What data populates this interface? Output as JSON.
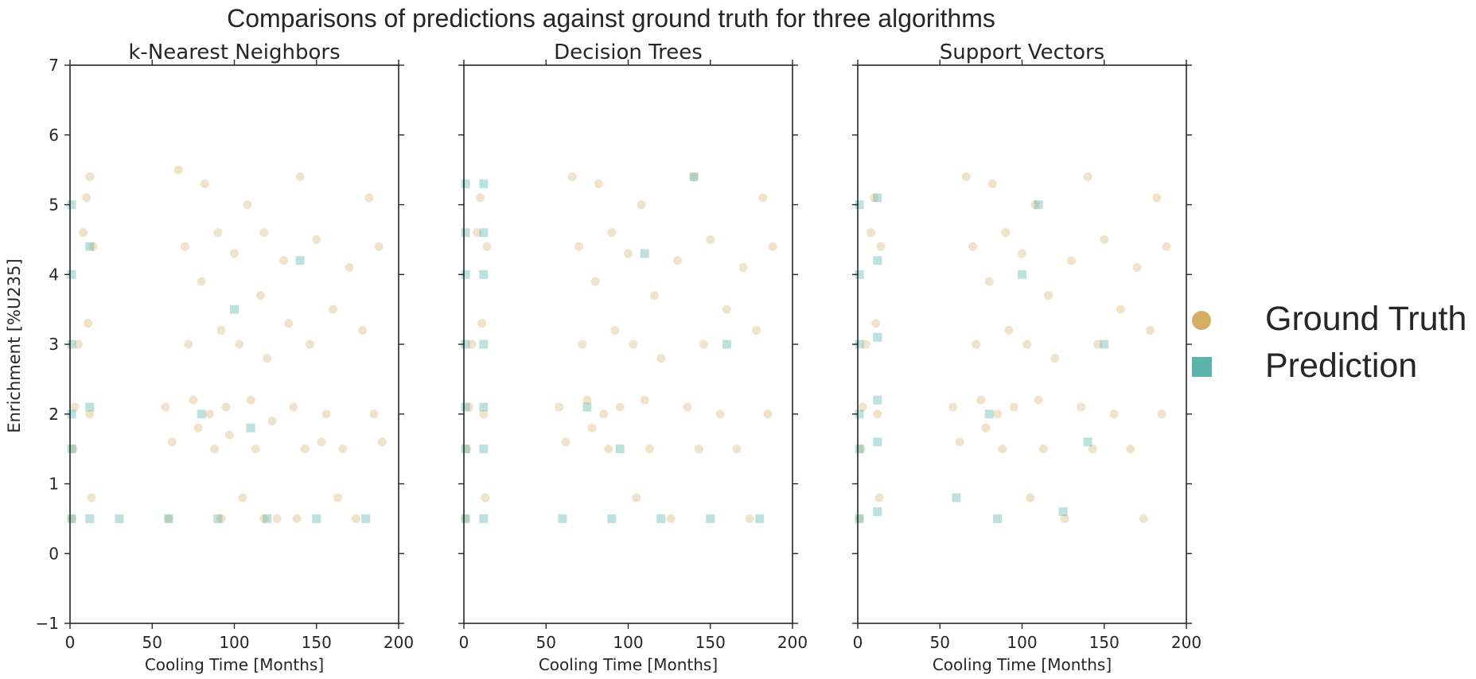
{
  "figure": {
    "title": "Comparisons of predictions against ground truth for three algorithms",
    "ylabel": "Enrichment [%U235]",
    "xlabel": "Cooling Time [Months]"
  },
  "legend": {
    "entries": [
      {
        "label": "Ground Truth",
        "marker": "circle",
        "color": "#d4ae63"
      },
      {
        "label": "Prediction",
        "marker": "square",
        "color": "#5ab4ac"
      }
    ],
    "placement": "right"
  },
  "colors": {
    "ground_truth": "#d4ae63",
    "prediction": "#5ab4ac",
    "axis": "#262626"
  },
  "chart_data": [
    {
      "type": "scatter",
      "title": "k-Nearest Neighbors",
      "xlabel": "Cooling Time [Months]",
      "ylabel": "Enrichment [%U235]",
      "xlim": [
        0,
        200
      ],
      "ylim": [
        -1,
        7
      ],
      "xticks": [
        0,
        50,
        100,
        150,
        200
      ],
      "yticks": [
        -1,
        0,
        1,
        2,
        3,
        4,
        5,
        6,
        7
      ],
      "grid": false,
      "series": [
        {
          "name": "Ground Truth",
          "points": [
            [
              1,
              0.5
            ],
            [
              2,
              1.5
            ],
            [
              3,
              2.1
            ],
            [
              5,
              3.0
            ],
            [
              8,
              4.6
            ],
            [
              10,
              5.1
            ],
            [
              11,
              3.3
            ],
            [
              12,
              2.0
            ],
            [
              13,
              0.8
            ],
            [
              14,
              4.4
            ],
            [
              12,
              5.4
            ],
            [
              58,
              2.1
            ],
            [
              62,
              1.6
            ],
            [
              66,
              5.5
            ],
            [
              70,
              4.4
            ],
            [
              72,
              3.0
            ],
            [
              75,
              2.2
            ],
            [
              78,
              1.8
            ],
            [
              80,
              3.9
            ],
            [
              82,
              5.3
            ],
            [
              85,
              2.0
            ],
            [
              88,
              1.5
            ],
            [
              90,
              4.6
            ],
            [
              92,
              3.2
            ],
            [
              95,
              2.1
            ],
            [
              97,
              1.7
            ],
            [
              100,
              4.3
            ],
            [
              103,
              3.0
            ],
            [
              105,
              0.8
            ],
            [
              108,
              5.0
            ],
            [
              110,
              2.2
            ],
            [
              113,
              1.5
            ],
            [
              116,
              3.7
            ],
            [
              118,
              4.6
            ],
            [
              120,
              2.8
            ],
            [
              123,
              1.9
            ],
            [
              126,
              0.5
            ],
            [
              130,
              4.2
            ],
            [
              133,
              3.3
            ],
            [
              136,
              2.1
            ],
            [
              140,
              5.4
            ],
            [
              143,
              1.5
            ],
            [
              146,
              3.0
            ],
            [
              150,
              4.5
            ],
            [
              153,
              1.6
            ],
            [
              156,
              2.0
            ],
            [
              160,
              3.5
            ],
            [
              163,
              0.8
            ],
            [
              166,
              1.5
            ],
            [
              170,
              4.1
            ],
            [
              174,
              0.5
            ],
            [
              178,
              3.2
            ],
            [
              182,
              5.1
            ],
            [
              185,
              2.0
            ],
            [
              188,
              4.4
            ],
            [
              190,
              1.6
            ],
            [
              60,
              0.5
            ],
            [
              92,
              0.5
            ],
            [
              118,
              0.5
            ],
            [
              138,
              0.5
            ]
          ]
        },
        {
          "name": "Prediction",
          "points": [
            [
              1,
              0.5
            ],
            [
              1,
              1.5
            ],
            [
              1,
              2.0
            ],
            [
              1,
              3.0
            ],
            [
              1,
              4.0
            ],
            [
              1,
              5.0
            ],
            [
              12,
              0.5
            ],
            [
              12,
              2.1
            ],
            [
              12,
              4.4
            ],
            [
              30,
              0.5
            ],
            [
              60,
              0.5
            ],
            [
              90,
              0.5
            ],
            [
              120,
              0.5
            ],
            [
              150,
              0.5
            ],
            [
              180,
              0.5
            ],
            [
              80,
              2.0
            ],
            [
              100,
              3.5
            ],
            [
              140,
              4.2
            ],
            [
              110,
              1.8
            ]
          ]
        }
      ]
    },
    {
      "type": "scatter",
      "title": "Decision Trees",
      "xlabel": "Cooling Time [Months]",
      "xlim": [
        0,
        200
      ],
      "ylim": [
        -1,
        7
      ],
      "xticks": [
        0,
        50,
        100,
        150,
        200
      ],
      "yticks": [
        -1,
        0,
        1,
        2,
        3,
        4,
        5,
        6,
        7
      ],
      "grid": false,
      "series": [
        {
          "name": "Ground Truth",
          "points": [
            [
              1,
              0.5
            ],
            [
              2,
              1.5
            ],
            [
              3,
              2.1
            ],
            [
              5,
              3.0
            ],
            [
              8,
              4.6
            ],
            [
              10,
              5.1
            ],
            [
              11,
              3.3
            ],
            [
              12,
              2.0
            ],
            [
              13,
              0.8
            ],
            [
              14,
              4.4
            ],
            [
              58,
              2.1
            ],
            [
              62,
              1.6
            ],
            [
              66,
              5.4
            ],
            [
              70,
              4.4
            ],
            [
              72,
              3.0
            ],
            [
              75,
              2.2
            ],
            [
              78,
              1.8
            ],
            [
              80,
              3.9
            ],
            [
              82,
              5.3
            ],
            [
              85,
              2.0
            ],
            [
              88,
              1.5
            ],
            [
              90,
              4.6
            ],
            [
              92,
              3.2
            ],
            [
              95,
              2.1
            ],
            [
              100,
              4.3
            ],
            [
              103,
              3.0
            ],
            [
              105,
              0.8
            ],
            [
              108,
              5.0
            ],
            [
              110,
              2.2
            ],
            [
              113,
              1.5
            ],
            [
              116,
              3.7
            ],
            [
              120,
              2.8
            ],
            [
              126,
              0.5
            ],
            [
              130,
              4.2
            ],
            [
              136,
              2.1
            ],
            [
              140,
              5.4
            ],
            [
              143,
              1.5
            ],
            [
              146,
              3.0
            ],
            [
              150,
              4.5
            ],
            [
              156,
              2.0
            ],
            [
              160,
              3.5
            ],
            [
              166,
              1.5
            ],
            [
              170,
              4.1
            ],
            [
              174,
              0.5
            ],
            [
              178,
              3.2
            ],
            [
              182,
              5.1
            ],
            [
              185,
              2.0
            ],
            [
              188,
              4.4
            ]
          ]
        },
        {
          "name": "Prediction",
          "points": [
            [
              1,
              0.5
            ],
            [
              1,
              1.5
            ],
            [
              1,
              2.1
            ],
            [
              1,
              3.0
            ],
            [
              1,
              4.0
            ],
            [
              1,
              4.6
            ],
            [
              1,
              5.3
            ],
            [
              12,
              0.5
            ],
            [
              12,
              1.5
            ],
            [
              12,
              2.1
            ],
            [
              12,
              3.0
            ],
            [
              12,
              4.0
            ],
            [
              12,
              4.6
            ],
            [
              12,
              5.3
            ],
            [
              60,
              0.5
            ],
            [
              90,
              0.5
            ],
            [
              120,
              0.5
            ],
            [
              150,
              0.5
            ],
            [
              180,
              0.5
            ],
            [
              75,
              2.1
            ],
            [
              95,
              1.5
            ],
            [
              140,
              5.4
            ],
            [
              110,
              4.3
            ],
            [
              160,
              3.0
            ]
          ]
        }
      ]
    },
    {
      "type": "scatter",
      "title": "Support Vectors",
      "xlabel": "Cooling Time [Months]",
      "xlim": [
        0,
        200
      ],
      "ylim": [
        -1,
        7
      ],
      "xticks": [
        0,
        50,
        100,
        150,
        200
      ],
      "yticks": [
        -1,
        0,
        1,
        2,
        3,
        4,
        5,
        6,
        7
      ],
      "grid": false,
      "series": [
        {
          "name": "Ground Truth",
          "points": [
            [
              1,
              0.5
            ],
            [
              2,
              1.5
            ],
            [
              3,
              2.1
            ],
            [
              5,
              3.0
            ],
            [
              8,
              4.6
            ],
            [
              10,
              5.1
            ],
            [
              11,
              3.3
            ],
            [
              12,
              2.0
            ],
            [
              13,
              0.8
            ],
            [
              14,
              4.4
            ],
            [
              58,
              2.1
            ],
            [
              62,
              1.6
            ],
            [
              66,
              5.4
            ],
            [
              70,
              4.4
            ],
            [
              72,
              3.0
            ],
            [
              75,
              2.2
            ],
            [
              78,
              1.8
            ],
            [
              80,
              3.9
            ],
            [
              82,
              5.3
            ],
            [
              85,
              2.0
            ],
            [
              88,
              1.5
            ],
            [
              90,
              4.6
            ],
            [
              92,
              3.2
            ],
            [
              95,
              2.1
            ],
            [
              100,
              4.3
            ],
            [
              103,
              3.0
            ],
            [
              105,
              0.8
            ],
            [
              108,
              5.0
            ],
            [
              110,
              2.2
            ],
            [
              113,
              1.5
            ],
            [
              116,
              3.7
            ],
            [
              120,
              2.8
            ],
            [
              126,
              0.5
            ],
            [
              130,
              4.2
            ],
            [
              136,
              2.1
            ],
            [
              140,
              5.4
            ],
            [
              143,
              1.5
            ],
            [
              146,
              3.0
            ],
            [
              150,
              4.5
            ],
            [
              156,
              2.0
            ],
            [
              160,
              3.5
            ],
            [
              166,
              1.5
            ],
            [
              170,
              4.1
            ],
            [
              174,
              0.5
            ],
            [
              178,
              3.2
            ],
            [
              182,
              5.1
            ],
            [
              185,
              2.0
            ],
            [
              188,
              4.4
            ]
          ]
        },
        {
          "name": "Prediction",
          "points": [
            [
              1,
              0.5
            ],
            [
              1,
              1.5
            ],
            [
              1,
              2.0
            ],
            [
              1,
              3.0
            ],
            [
              1,
              4.0
            ],
            [
              1,
              5.0
            ],
            [
              12,
              0.6
            ],
            [
              12,
              1.6
            ],
            [
              12,
              2.2
            ],
            [
              12,
              3.1
            ],
            [
              12,
              4.2
            ],
            [
              12,
              5.1
            ],
            [
              80,
              2.0
            ],
            [
              100,
              4.0
            ],
            [
              140,
              1.6
            ],
            [
              125,
              0.6
            ],
            [
              85,
              0.5
            ],
            [
              60,
              0.8
            ],
            [
              150,
              3.0
            ],
            [
              110,
              5.0
            ]
          ]
        }
      ]
    }
  ]
}
